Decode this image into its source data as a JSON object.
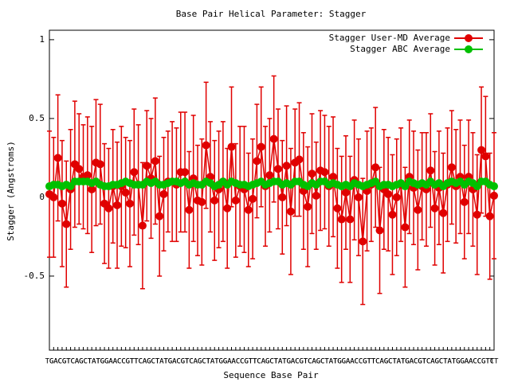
{
  "chart_data": {
    "type": "errorbar-line",
    "title": "Base Pair Helical Parameter: Stagger",
    "x_label": "Sequence Base Pair",
    "y_label": "Stagger (Angstroms)",
    "legend_position": "top right",
    "ylim": [
      -0.97,
      1.06
    ],
    "yticks": [
      -0.5,
      0,
      0.5,
      1
    ],
    "categories": [
      "TG",
      "GA",
      "AC",
      "CG",
      "GT",
      "TC",
      "CA",
      "AG",
      "GC",
      "CT",
      "TA",
      "AT",
      "TG",
      "GG",
      "GA",
      "AA",
      "AC",
      "CC",
      "CG",
      "GT",
      "TT",
      "TC",
      "CA",
      "AG",
      "GC",
      "CT",
      "TA",
      "AT",
      "TG",
      "GA",
      "AC",
      "CG",
      "GT",
      "TC",
      "CA",
      "AG",
      "GC",
      "CT",
      "TA",
      "AT",
      "TG",
      "GG",
      "GA",
      "AA",
      "AC",
      "CC",
      "CG",
      "GT",
      "TT",
      "TC",
      "CA",
      "AG",
      "GC",
      "CT",
      "TA",
      "AT",
      "TG",
      "GA",
      "AC",
      "CG",
      "GT",
      "TC",
      "CA",
      "AG",
      "GC",
      "CT",
      "TA",
      "AT",
      "TG",
      "GG",
      "GA",
      "AA",
      "AC",
      "CC",
      "CG",
      "GT",
      "TT",
      "TC",
      "CA",
      "AG",
      "GC",
      "CT",
      "TA",
      "AT",
      "TG",
      "GA",
      "AC",
      "CG",
      "GT",
      "TC",
      "CA",
      "AG",
      "GC",
      "CT",
      "TA",
      "AT",
      "TG",
      "GG",
      "GA",
      "AA",
      "AC",
      "CC",
      "CG",
      "GT",
      "TT",
      "CT"
    ],
    "series": [
      {
        "name": "Stagger User-MD Average",
        "color": "#e00000",
        "values": [
          0.02,
          0.0,
          0.25,
          -0.04,
          -0.17,
          0.05,
          0.21,
          0.18,
          0.13,
          0.14,
          0.05,
          0.22,
          0.21,
          -0.04,
          -0.07,
          0.07,
          -0.05,
          0.07,
          0.03,
          -0.04,
          0.16,
          0.08,
          -0.18,
          0.2,
          0.12,
          0.23,
          -0.12,
          0.02,
          0.1,
          0.1,
          0.08,
          0.16,
          0.16,
          -0.08,
          0.12,
          -0.02,
          -0.03,
          0.33,
          0.13,
          -0.02,
          0.05,
          0.1,
          -0.07,
          0.32,
          -0.02,
          0.07,
          0.05,
          -0.08,
          -0.01,
          0.23,
          0.32,
          0.07,
          0.14,
          0.37,
          0.18,
          0.0,
          0.2,
          -0.09,
          0.22,
          0.24,
          0.04,
          -0.06,
          0.15,
          0.01,
          0.17,
          0.16,
          0.07,
          0.13,
          -0.07,
          -0.14,
          0.03,
          -0.14,
          0.11,
          0.0,
          -0.28,
          0.04,
          0.08,
          0.19,
          -0.21,
          0.05,
          0.02,
          -0.11,
          0.0,
          0.08,
          -0.19,
          0.13,
          0.06,
          -0.08,
          0.07,
          0.05,
          0.17,
          -0.07,
          0.06,
          -0.1,
          0.08,
          0.19,
          0.07,
          0.13,
          -0.03,
          0.13,
          0.05,
          -0.11,
          0.3,
          0.26,
          -0.12,
          0.01
        ],
        "errors": [
          0.4,
          0.38,
          0.4,
          0.4,
          0.4,
          0.38,
          0.4,
          0.35,
          0.33,
          0.37,
          0.4,
          0.4,
          0.38,
          0.38,
          0.38,
          0.36,
          0.4,
          0.38,
          0.35,
          0.4,
          0.4,
          0.38,
          0.4,
          0.35,
          0.38,
          0.4,
          0.38,
          0.36,
          0.32,
          0.38,
          0.36,
          0.38,
          0.38,
          0.37,
          0.4,
          0.35,
          0.4,
          0.4,
          0.35,
          0.38,
          0.37,
          0.38,
          0.38,
          0.38,
          0.36,
          0.38,
          0.4,
          0.36,
          0.38,
          0.36,
          0.38,
          0.38,
          0.36,
          0.4,
          0.38,
          0.36,
          0.38,
          0.4,
          0.34,
          0.36,
          0.37,
          0.38,
          0.38,
          0.34,
          0.38,
          0.36,
          0.38,
          0.38,
          0.38,
          0.4,
          0.36,
          0.4,
          0.38,
          0.37,
          0.4,
          0.38,
          0.36,
          0.38,
          0.4,
          0.38,
          0.36,
          0.38,
          0.37,
          0.36,
          0.38,
          0.36,
          0.36,
          0.38,
          0.34,
          0.36,
          0.36,
          0.36,
          0.36,
          0.38,
          0.36,
          0.36,
          0.36,
          0.36,
          0.36,
          0.36,
          0.36,
          0.38,
          0.4,
          0.38,
          0.4,
          0.4
        ]
      },
      {
        "name": "Stagger ABC Average",
        "color": "#00c000",
        "values": [
          0.07,
          0.08,
          0.08,
          0.07,
          0.08,
          0.07,
          0.1,
          0.1,
          0.1,
          0.1,
          0.09,
          0.1,
          0.08,
          0.07,
          0.07,
          0.08,
          0.08,
          0.09,
          0.1,
          0.09,
          0.08,
          0.08,
          0.08,
          0.1,
          0.09,
          0.1,
          0.08,
          0.08,
          0.09,
          0.1,
          0.1,
          0.09,
          0.1,
          0.08,
          0.09,
          0.08,
          0.08,
          0.1,
          0.09,
          0.07,
          0.08,
          0.1,
          0.08,
          0.1,
          0.09,
          0.08,
          0.08,
          0.07,
          0.08,
          0.09,
          0.1,
          0.08,
          0.09,
          0.1,
          0.1,
          0.08,
          0.09,
          0.08,
          0.1,
          0.1,
          0.08,
          0.07,
          0.09,
          0.08,
          0.1,
          0.1,
          0.08,
          0.09,
          0.08,
          0.07,
          0.08,
          0.07,
          0.09,
          0.08,
          0.07,
          0.08,
          0.09,
          0.1,
          0.07,
          0.08,
          0.08,
          0.07,
          0.08,
          0.09,
          0.07,
          0.1,
          0.09,
          0.08,
          0.09,
          0.08,
          0.1,
          0.08,
          0.09,
          0.07,
          0.09,
          0.1,
          0.09,
          0.1,
          0.08,
          0.1,
          0.09,
          0.07,
          0.1,
          0.1,
          0.08,
          0.07
        ]
      }
    ]
  }
}
